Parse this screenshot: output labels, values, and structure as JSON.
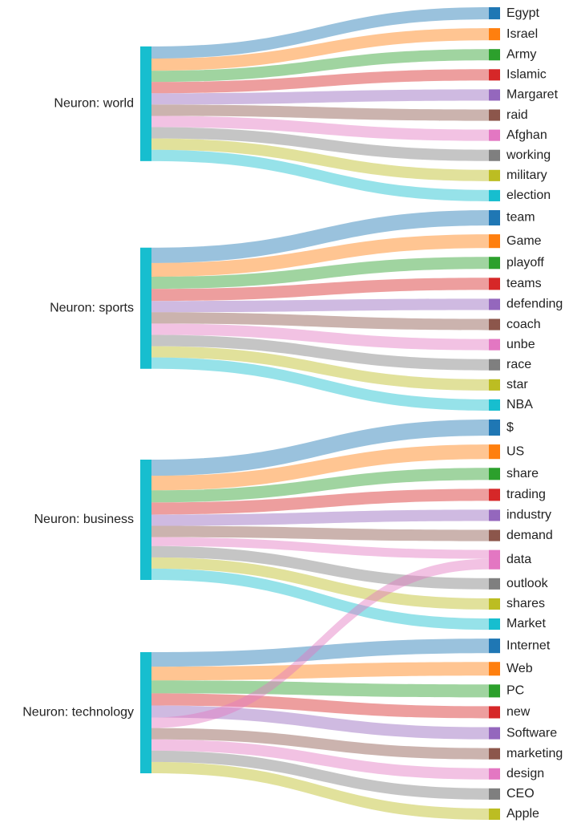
{
  "chart_data": {
    "type": "sankey",
    "nodes": [
      {
        "label": "Neuron: world",
        "color": "#17becf"
      },
      {
        "label": "Neuron: sports",
        "color": "#17becf"
      },
      {
        "label": "Neuron: business",
        "color": "#17becf"
      },
      {
        "label": "Neuron: technology",
        "color": "#17becf"
      },
      {
        "label": "Egypt",
        "color": "#1f77b4"
      },
      {
        "label": "Israel",
        "color": "#ff7f0e"
      },
      {
        "label": "Army",
        "color": "#2ca02c"
      },
      {
        "label": "Islamic",
        "color": "#d62728"
      },
      {
        "label": "Margaret",
        "color": "#9467bd"
      },
      {
        "label": "raid",
        "color": "#8c564b"
      },
      {
        "label": "Afghan",
        "color": "#e377c2"
      },
      {
        "label": "working",
        "color": "#7f7f7f"
      },
      {
        "label": "military",
        "color": "#bcbd22"
      },
      {
        "label": "election",
        "color": "#17becf"
      },
      {
        "label": "team",
        "color": "#1f77b4"
      },
      {
        "label": "Game",
        "color": "#ff7f0e"
      },
      {
        "label": "playoff",
        "color": "#2ca02c"
      },
      {
        "label": "teams",
        "color": "#d62728"
      },
      {
        "label": "defending",
        "color": "#9467bd"
      },
      {
        "label": "coach",
        "color": "#8c564b"
      },
      {
        "label": "unbe",
        "color": "#e377c2"
      },
      {
        "label": "race",
        "color": "#7f7f7f"
      },
      {
        "label": "star",
        "color": "#bcbd22"
      },
      {
        "label": "NBA",
        "color": "#17becf"
      },
      {
        "label": "$",
        "color": "#1f77b4"
      },
      {
        "label": "US",
        "color": "#ff7f0e"
      },
      {
        "label": "share",
        "color": "#2ca02c"
      },
      {
        "label": "trading",
        "color": "#d62728"
      },
      {
        "label": "industry",
        "color": "#9467bd"
      },
      {
        "label": "demand",
        "color": "#8c564b"
      },
      {
        "label": "data",
        "color": "#e377c2"
      },
      {
        "label": "outlook",
        "color": "#7f7f7f"
      },
      {
        "label": "shares",
        "color": "#bcbd22"
      },
      {
        "label": "Market",
        "color": "#17becf"
      },
      {
        "label": "Internet",
        "color": "#1f77b4"
      },
      {
        "label": "Web",
        "color": "#ff7f0e"
      },
      {
        "label": "PC",
        "color": "#2ca02c"
      },
      {
        "label": "new",
        "color": "#d62728"
      },
      {
        "label": "Software",
        "color": "#9467bd"
      },
      {
        "label": "marketing",
        "color": "#8c564b"
      },
      {
        "label": "design",
        "color": "#e377c2"
      },
      {
        "label": "CEO",
        "color": "#7f7f7f"
      },
      {
        "label": "Apple",
        "color": "#bcbd22"
      }
    ],
    "links": [
      {
        "source": 0,
        "target": 4,
        "value": 15
      },
      {
        "source": 0,
        "target": 5,
        "value": 15
      },
      {
        "source": 0,
        "target": 6,
        "value": 14
      },
      {
        "source": 0,
        "target": 7,
        "value": 14
      },
      {
        "source": 0,
        "target": 8,
        "value": 14
      },
      {
        "source": 0,
        "target": 9,
        "value": 14
      },
      {
        "source": 0,
        "target": 10,
        "value": 14
      },
      {
        "source": 0,
        "target": 11,
        "value": 14
      },
      {
        "source": 0,
        "target": 12,
        "value": 14
      },
      {
        "source": 0,
        "target": 13,
        "value": 14
      },
      {
        "source": 1,
        "target": 14,
        "value": 19
      },
      {
        "source": 1,
        "target": 15,
        "value": 17
      },
      {
        "source": 1,
        "target": 16,
        "value": 15
      },
      {
        "source": 1,
        "target": 17,
        "value": 15
      },
      {
        "source": 1,
        "target": 18,
        "value": 14
      },
      {
        "source": 1,
        "target": 19,
        "value": 14
      },
      {
        "source": 1,
        "target": 20,
        "value": 14
      },
      {
        "source": 1,
        "target": 21,
        "value": 14
      },
      {
        "source": 1,
        "target": 22,
        "value": 14
      },
      {
        "source": 1,
        "target": 23,
        "value": 14
      },
      {
        "source": 2,
        "target": 24,
        "value": 20
      },
      {
        "source": 2,
        "target": 25,
        "value": 18
      },
      {
        "source": 2,
        "target": 26,
        "value": 15
      },
      {
        "source": 2,
        "target": 27,
        "value": 15
      },
      {
        "source": 2,
        "target": 28,
        "value": 14
      },
      {
        "source": 2,
        "target": 29,
        "value": 14
      },
      {
        "source": 2,
        "target": 30,
        "value": 11
      },
      {
        "source": 2,
        "target": 31,
        "value": 14
      },
      {
        "source": 2,
        "target": 32,
        "value": 14
      },
      {
        "source": 2,
        "target": 33,
        "value": 14
      },
      {
        "source": 3,
        "target": 34,
        "value": 18
      },
      {
        "source": 3,
        "target": 35,
        "value": 17
      },
      {
        "source": 3,
        "target": 36,
        "value": 16
      },
      {
        "source": 3,
        "target": 37,
        "value": 15
      },
      {
        "source": 3,
        "target": 38,
        "value": 15
      },
      {
        "source": 3,
        "target": 30,
        "value": 13
      },
      {
        "source": 3,
        "target": 39,
        "value": 14
      },
      {
        "source": 3,
        "target": 40,
        "value": 14
      },
      {
        "source": 3,
        "target": 41,
        "value": 14
      },
      {
        "source": 3,
        "target": 42,
        "value": 14
      }
    ]
  }
}
